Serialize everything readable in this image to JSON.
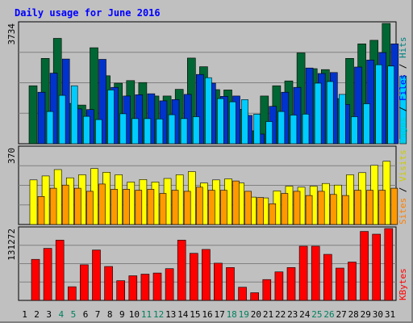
{
  "chart_data": {
    "type": "bar",
    "title": "Daily usage for June 2016",
    "categories": [
      "1",
      "2",
      "3",
      "4",
      "5",
      "6",
      "7",
      "8",
      "9",
      "10",
      "11",
      "12",
      "13",
      "14",
      "15",
      "16",
      "17",
      "18",
      "19",
      "20",
      "21",
      "22",
      "23",
      "24",
      "25",
      "26",
      "27",
      "28",
      "29",
      "30",
      "31"
    ],
    "weekend_days": [
      "4",
      "5",
      "11",
      "12",
      "18",
      "19",
      "25",
      "26"
    ],
    "panels": [
      {
        "id": "hits_files_pages",
        "ymax_label": "3734",
        "ymax": 3734,
        "legend": [
          "Pages",
          "Files",
          "Hits"
        ],
        "series": [
          {
            "name": "Hits",
            "color": "#006633",
            "values": [
              1800,
              2650,
              3270,
              1250,
              1200,
              2980,
              2110,
              1880,
              1960,
              1900,
              1480,
              1480,
              1690,
              2660,
              2390,
              1680,
              1670,
              1070,
              400,
              1480,
              1800,
              1950,
              2820,
              2330,
              2300,
              1400,
              2650,
              3100,
              3210,
              3734,
              0
            ]
          },
          {
            "name": "Files",
            "color": "#0033cc",
            "values": [
              1600,
              2190,
              2630,
              1080,
              1060,
              2620,
              1750,
              1480,
              1520,
              1550,
              1330,
              1370,
              1530,
              2150,
              1880,
              1470,
              1480,
              880,
              300,
              1160,
              1600,
              1750,
              2350,
              2180,
              2210,
              1220,
              2380,
              2600,
              2830,
              3100,
              0
            ]
          },
          {
            "name": "Pages",
            "color": "#00ccff",
            "values": [
              1000,
              1500,
              1800,
              850,
              750,
              1670,
              930,
              780,
              780,
              770,
              900,
              780,
              840,
              2050,
              1400,
              1300,
              1370,
              920,
              690,
              1000,
              890,
              920,
              1880,
              1930,
              1530,
              840,
              1240,
              2450,
              2410,
              2100,
              0
            ]
          }
        ]
      },
      {
        "id": "visits_sites",
        "ymax_label": "370",
        "ymax": 370,
        "legend": [
          "Sites",
          "Visits"
        ],
        "series": [
          {
            "name": "Visits",
            "color": "#ffff00",
            "values": [
              215,
              234,
              265,
              225,
              240,
              270,
              252,
              240,
              205,
              217,
              205,
              222,
              240,
              255,
              200,
              215,
              220,
              200,
              132,
              128,
              162,
              185,
              180,
              185,
              198,
              190,
              240,
              250,
              285,
              305,
              0
            ]
          },
          {
            "name": "Sites",
            "color": "#ff9900",
            "values": [
              135,
              175,
              190,
              175,
              160,
              195,
              170,
              170,
              165,
              170,
              150,
              165,
              160,
              180,
              165,
              165,
              210,
              160,
              130,
              100,
              150,
              160,
              140,
              160,
              145,
              140,
              165,
              165,
              165,
              175,
              0
            ]
          }
        ]
      },
      {
        "id": "kbytes",
        "ymax_label": "131272",
        "ymax": 131272,
        "legend": [
          "KBytes"
        ],
        "series": [
          {
            "name": "KBytes",
            "color": "#ff0000",
            "values": [
              75000,
              95000,
              110000,
              25000,
              65000,
              92000,
              62000,
              36000,
              45000,
              48000,
              50000,
              58000,
              110000,
              86000,
              93000,
              68000,
              60000,
              24000,
              14000,
              38000,
              52000,
              60000,
              99000,
              99000,
              84000,
              59000,
              70000,
              126000,
              121000,
              131272,
              0
            ]
          }
        ]
      }
    ]
  }
}
